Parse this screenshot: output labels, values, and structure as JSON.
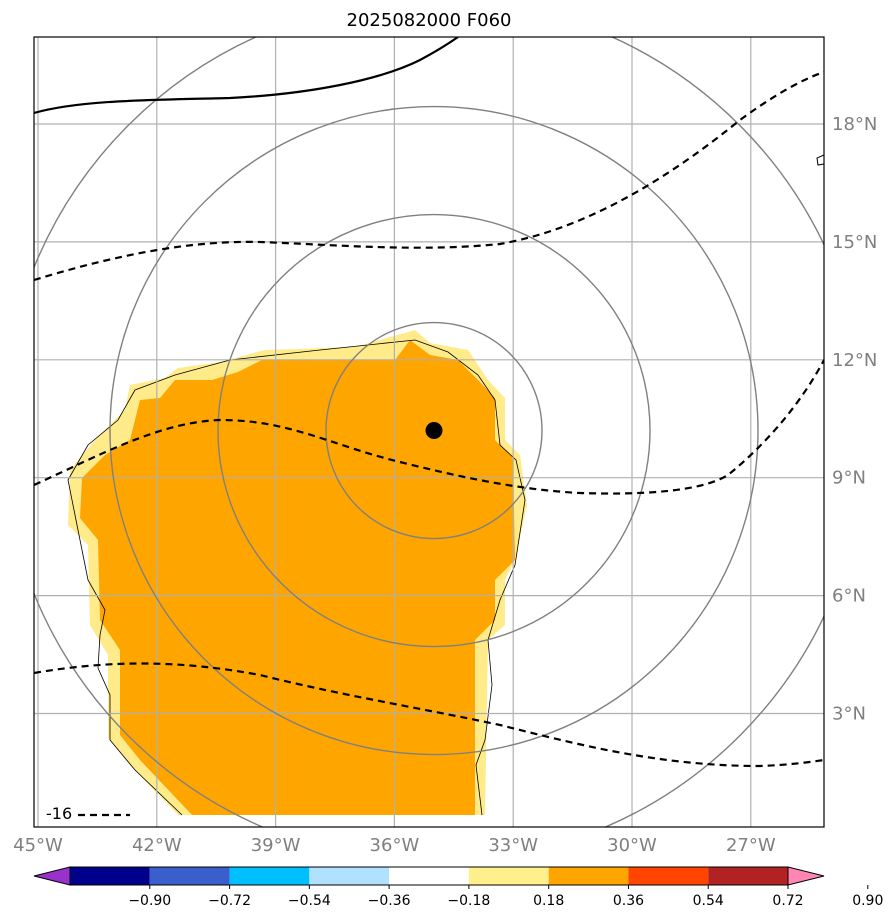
{
  "title": "2025082000 F060",
  "map": {
    "lon_labels": [
      "45°W",
      "42°W",
      "39°W",
      "36°W",
      "33°W",
      "30°W",
      "27°W"
    ],
    "lat_labels": [
      "18°N",
      "15°N",
      "12°N",
      "9°N",
      "6°N",
      "3°N"
    ],
    "extent": {
      "lon_min": -45,
      "lon_max": -25,
      "lat_min": 0.3,
      "lat_max": 20.2
    },
    "center": {
      "lon": -35,
      "lat": 10.2
    },
    "range_rings": 4,
    "contour_label": "-16",
    "colors": {
      "fill": "#ffa500",
      "fill_edge": "#ffeb8a",
      "grid": "#b0b0b0",
      "rings": "#808080",
      "contour": "#000000"
    }
  },
  "colorbar": {
    "ticks": [
      "−0.90",
      "−0.72",
      "−0.54",
      "−0.36",
      "−0.18",
      "0.18",
      "0.36",
      "0.54",
      "0.72",
      "0.90"
    ],
    "colors": [
      "#9932cc",
      "#00008b",
      "#3a5fcd",
      "#00bfff",
      "#b0e2ff",
      "#ffffff",
      "#fff08c",
      "#ffa500",
      "#ff4500",
      "#b22222",
      "#ff86b4"
    ]
  }
}
